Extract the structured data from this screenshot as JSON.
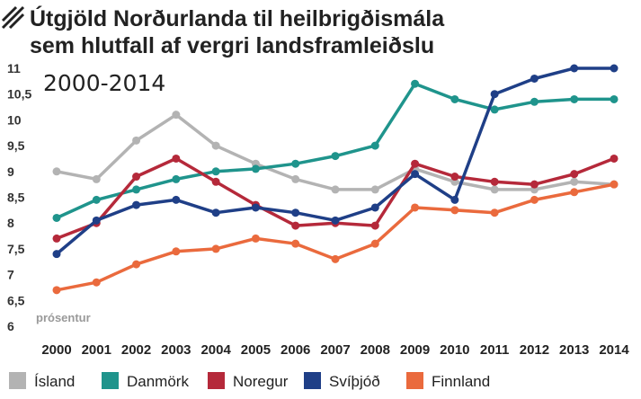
{
  "chart_data": {
    "type": "line",
    "title_line1": "Útgjöld Norðurlanda til heilbrigðismála",
    "title_line2": "sem hlutfall af vergri landsframleiðslu",
    "subtitle": "2000-2014",
    "ylabel": "prósentur",
    "x": [
      "2000",
      "2001",
      "2002",
      "2003",
      "2004",
      "2005",
      "2006",
      "2007",
      "2008",
      "2009",
      "2010",
      "2011",
      "2012",
      "2013",
      "2014"
    ],
    "y_ticks": [
      "11",
      "10,5",
      "10",
      "9,5",
      "9",
      "8,5",
      "8",
      "7,5",
      "7",
      "6,5",
      "6"
    ],
    "ylim": [
      6,
      11
    ],
    "grid": false,
    "legend_position": "bottom",
    "series": [
      {
        "name": "Ísland",
        "color": "#b3b3b3",
        "values": [
          9.0,
          8.85,
          9.6,
          10.1,
          9.5,
          9.15,
          8.85,
          8.65,
          8.65,
          9.05,
          8.8,
          8.65,
          8.65,
          8.8,
          8.75
        ]
      },
      {
        "name": "Danmörk",
        "color": "#1f948c",
        "values": [
          8.1,
          8.45,
          8.65,
          8.85,
          9.0,
          9.05,
          9.15,
          9.3,
          9.5,
          10.7,
          10.4,
          10.2,
          10.35,
          10.4,
          10.4
        ]
      },
      {
        "name": "Noregur",
        "color": "#b5293a",
        "values": [
          7.7,
          8.0,
          8.9,
          9.25,
          8.8,
          8.35,
          7.95,
          8.0,
          7.95,
          9.15,
          8.9,
          8.8,
          8.75,
          8.95,
          9.25
        ]
      },
      {
        "name": "Svíþjóð",
        "color": "#1f3f87",
        "values": [
          7.4,
          8.05,
          8.35,
          8.45,
          8.2,
          8.3,
          8.2,
          8.05,
          8.3,
          8.95,
          8.45,
          10.5,
          10.8,
          11.0,
          11.0
        ]
      },
      {
        "name": "Finnland",
        "color": "#ea6a3d",
        "values": [
          6.7,
          6.85,
          7.2,
          7.45,
          7.5,
          7.7,
          7.6,
          7.3,
          7.6,
          8.3,
          8.25,
          8.2,
          8.45,
          8.6,
          8.75
        ]
      }
    ]
  }
}
